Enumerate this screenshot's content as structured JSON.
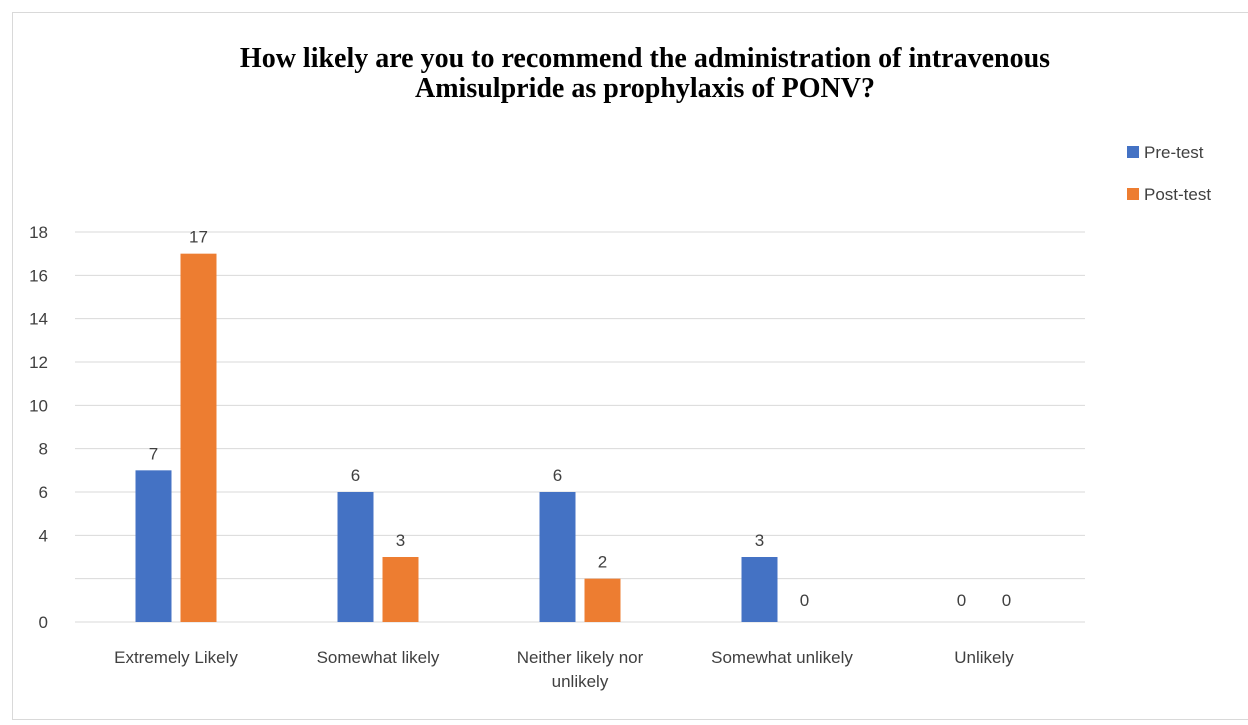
{
  "chart_data": {
    "type": "bar",
    "title_lines": [
      "How likely are you to recommend the administration of intravenous",
      "Amisulpride as prophylaxis of PONV?"
    ],
    "categories": [
      [
        "Extremely Likely"
      ],
      [
        "Somewhat likely"
      ],
      [
        "Neither likely nor",
        "unlikely"
      ],
      [
        "Somewhat unlikely"
      ],
      [
        "Unlikely"
      ]
    ],
    "series": [
      {
        "name": "Pre-test",
        "color": "#4472C4",
        "values": [
          7,
          6,
          6,
          3,
          0
        ]
      },
      {
        "name": "Post-test",
        "color": "#ED7D31",
        "values": [
          17,
          3,
          2,
          0,
          0
        ]
      }
    ],
    "y_ticks": [
      {
        "label": "0",
        "value": 0
      },
      {
        "label": "4",
        "value": 4
      },
      {
        "label": "6",
        "value": 6
      },
      {
        "label": "8",
        "value": 8
      },
      {
        "label": "10",
        "value": 10
      },
      {
        "label": "12",
        "value": 12
      },
      {
        "label": "14",
        "value": 14
      },
      {
        "label": "16",
        "value": 16
      },
      {
        "label": "18",
        "value": 18
      }
    ],
    "gridline_values": [
      0,
      2,
      4,
      6,
      8,
      10,
      12,
      14,
      16,
      18
    ],
    "ylim": [
      0,
      18
    ],
    "grid": true,
    "legend_position": "right",
    "data_labels": true,
    "gridline_color": "#d9d9d9"
  }
}
